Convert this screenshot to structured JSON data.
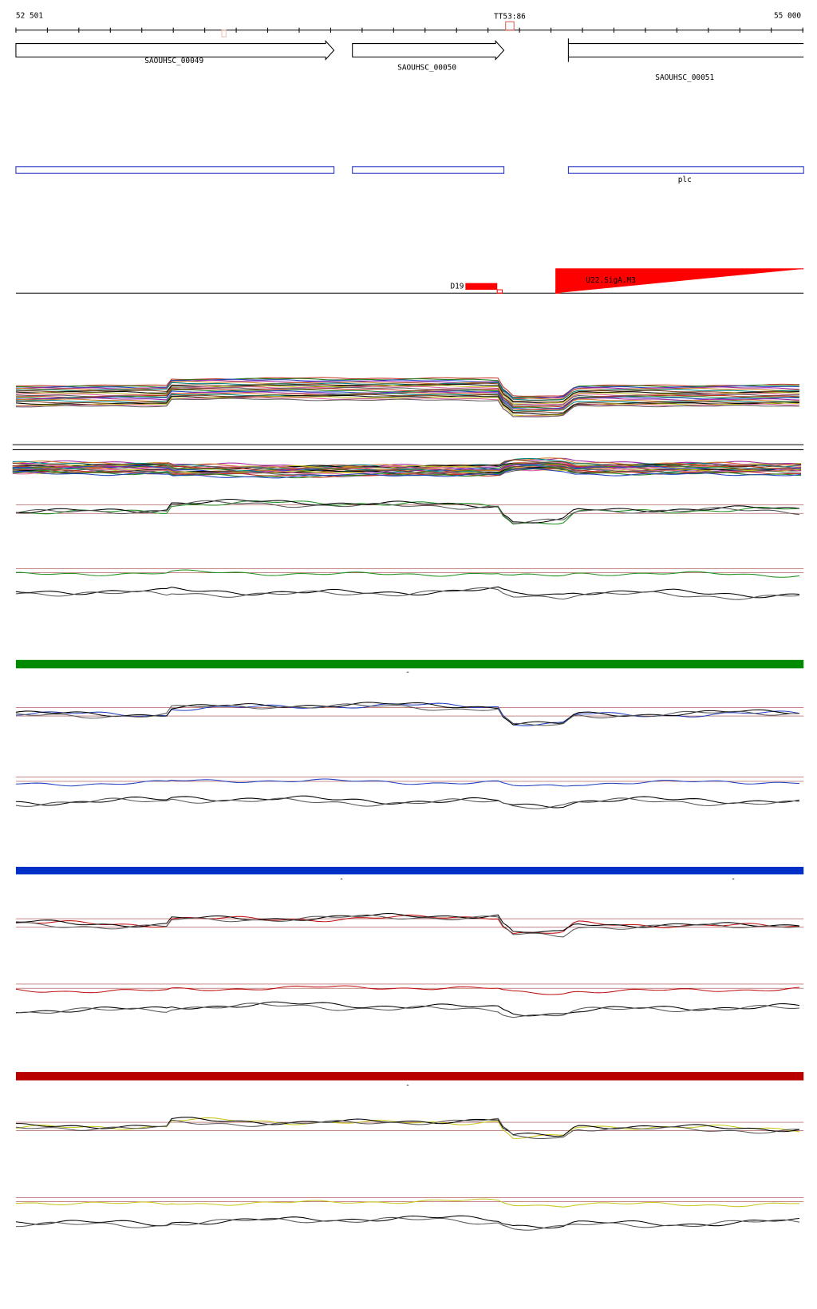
{
  "ruler": {
    "start": "52 501",
    "marker": "TT53:86",
    "end": "55 000"
  },
  "genes": [
    {
      "label": "SAOUHSC_00049"
    },
    {
      "label": "SAOUHSC_00050"
    },
    {
      "label": "SAOUHSC_00051"
    }
  ],
  "operon": {
    "label": "plc"
  },
  "features": {
    "terminator": "D19",
    "promoter": "U22.SigA.M3"
  },
  "strand_marks": [
    "-",
    "-",
    "-",
    "-"
  ]
}
